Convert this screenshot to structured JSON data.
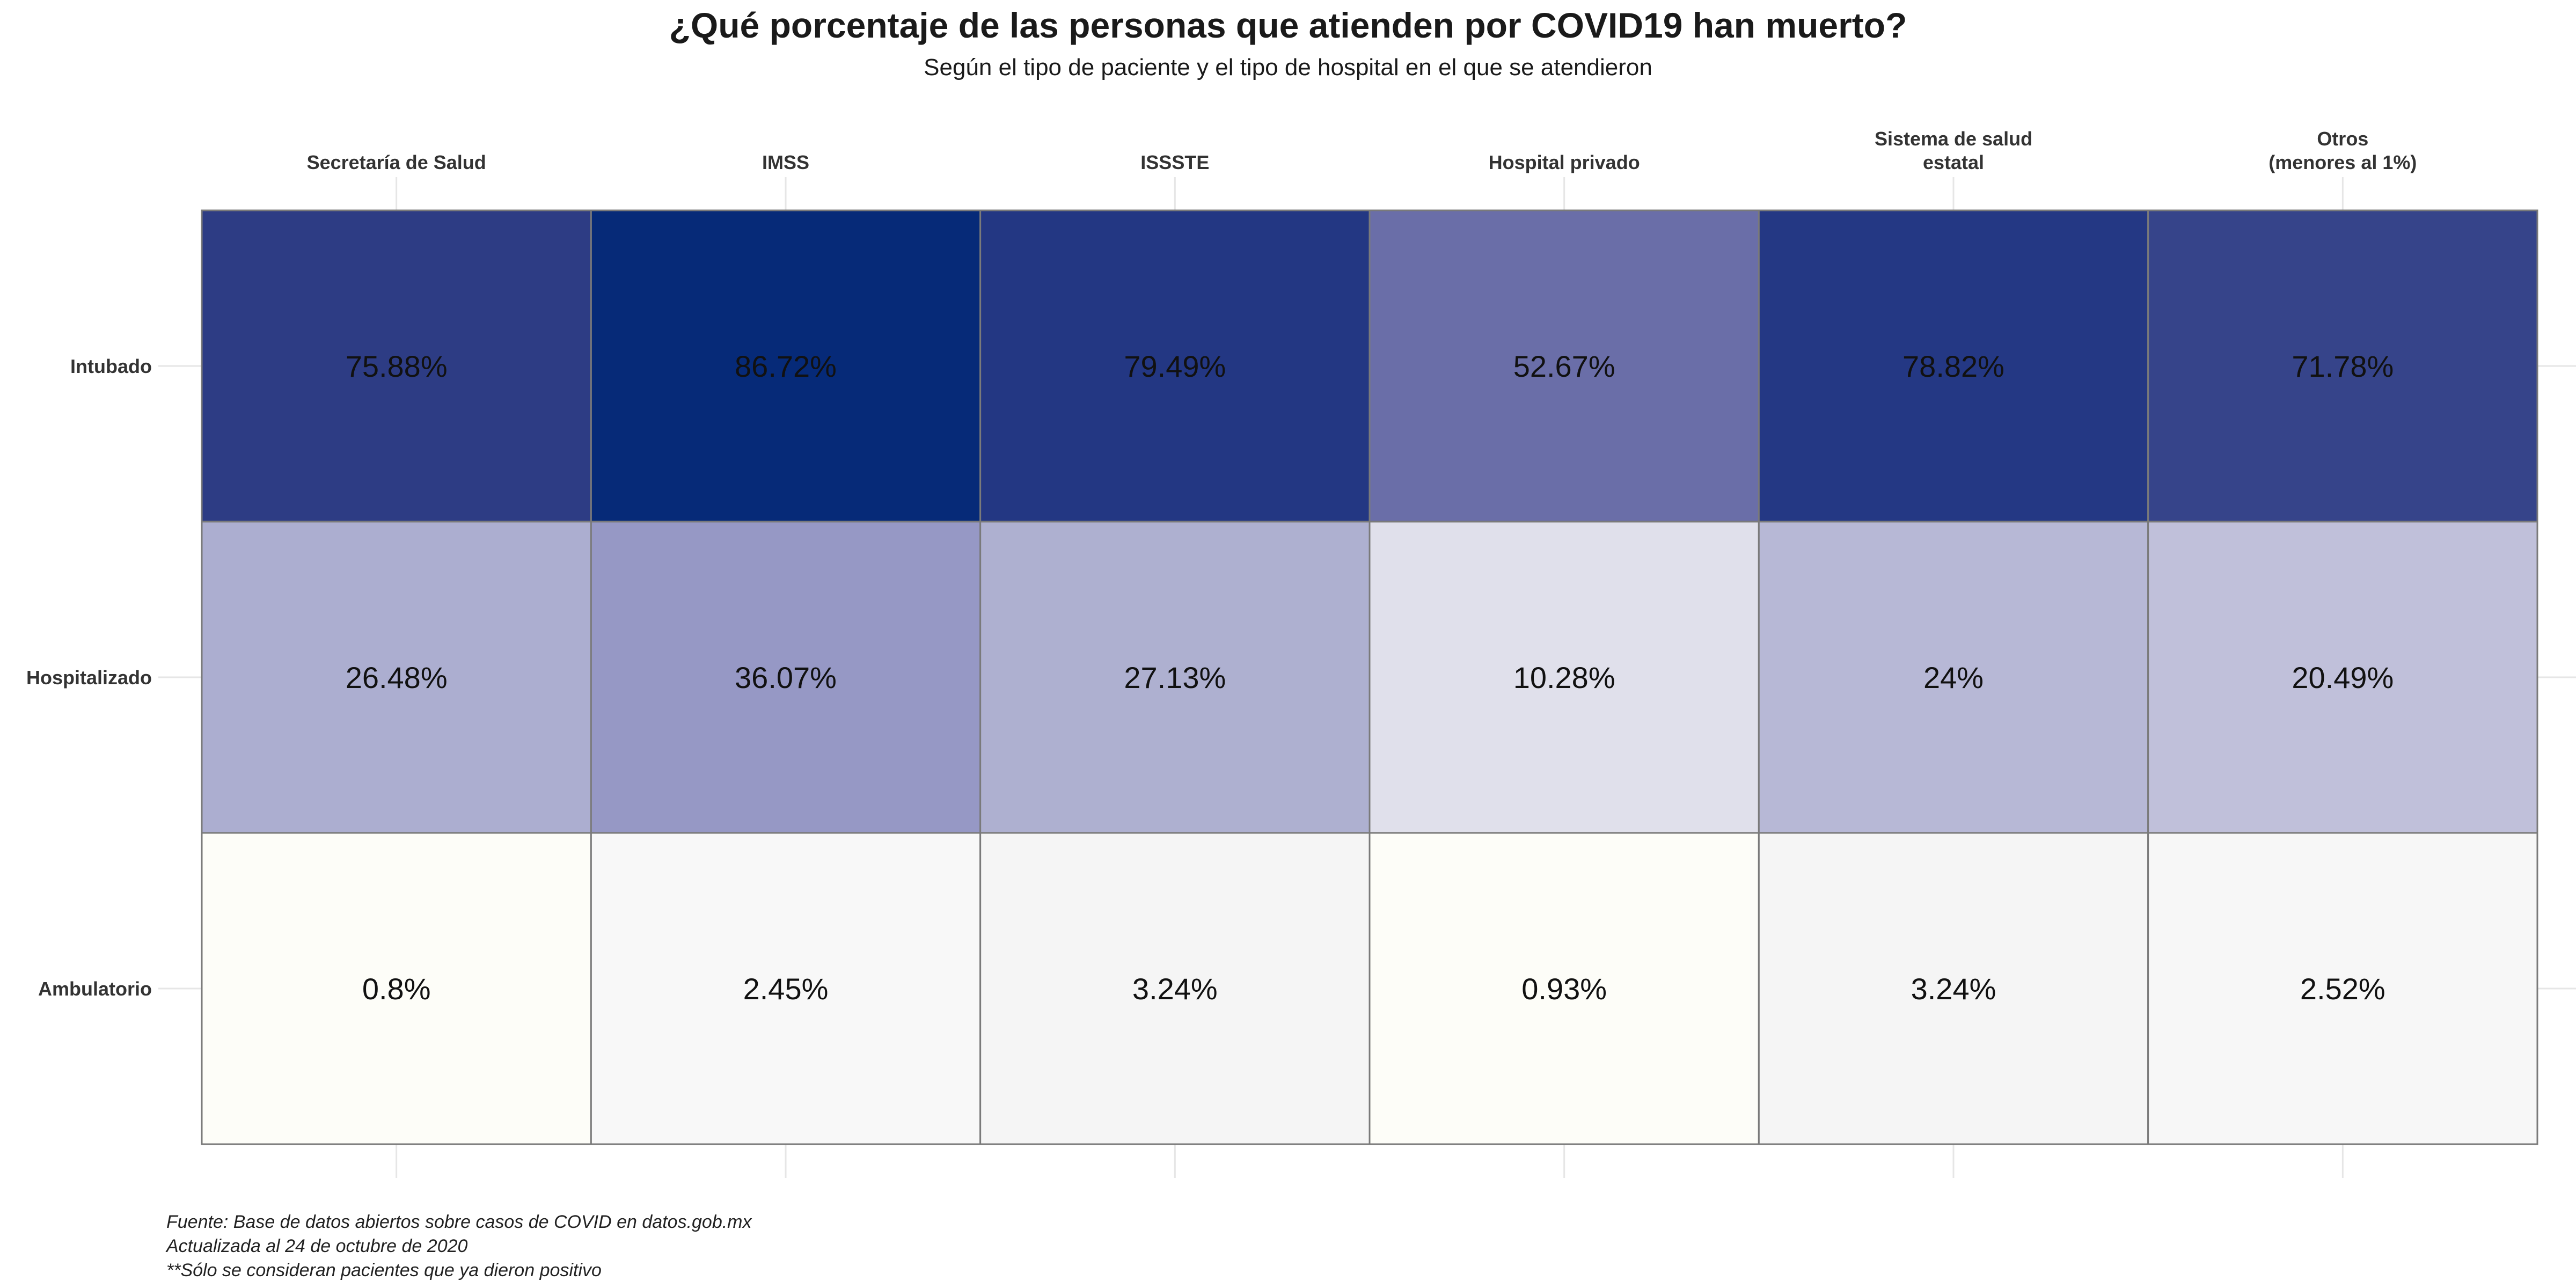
{
  "chart_data": {
    "type": "heatmap",
    "title": "¿Qué porcentaje de las personas que atienden por COVID19 han muerto?",
    "subtitle": "Según el tipo de paciente y el tipo de hospital en el que se atendieron",
    "columns": [
      [
        "Secretaría de Salud"
      ],
      [
        "IMSS"
      ],
      [
        "ISSSTE"
      ],
      [
        "Hospital privado"
      ],
      [
        "Sistema de salud",
        "estatal"
      ],
      [
        "Otros",
        "(menores al 1%)"
      ]
    ],
    "rows": [
      "Intubado",
      "Hospitalizado",
      "Ambulatorio"
    ],
    "values": [
      [
        75.88,
        86.72,
        79.49,
        52.67,
        78.82,
        71.78
      ],
      [
        26.48,
        36.07,
        27.13,
        10.28,
        24,
        20.49
      ],
      [
        0.8,
        2.45,
        3.24,
        0.93,
        3.24,
        2.52
      ]
    ],
    "labels": [
      [
        "75.88%",
        "86.72%",
        "79.49%",
        "52.67%",
        "78.82%",
        "71.78%"
      ],
      [
        "26.48%",
        "36.07%",
        "27.13%",
        "10.28%",
        "24%",
        "20.49%"
      ],
      [
        "0.8%",
        "2.45%",
        "3.24%",
        "0.93%",
        "3.24%",
        "2.52%"
      ]
    ],
    "fills": [
      [
        "#2d3c84",
        "#062a78",
        "#233783",
        "#6a6ea8",
        "#243884",
        "#36448a"
      ],
      [
        "#acaed0",
        "#9698c5",
        "#aeb0d0",
        "#e0e0eb",
        "#b7b8d6",
        "#c0c0da"
      ],
      [
        "#fdfdf8",
        "#f8f8f8",
        "#f5f5f5",
        "#fdfdf8",
        "#f5f5f5",
        "#f7f7f7"
      ]
    ],
    "grid": true,
    "legend": "none",
    "caption": [
      "Fuente: Base de datos abiertos sobre casos de COVID en datos.gob.mx",
      "Actualizada al 24 de octubre de 2020",
      "**Sólo se consideran pacientes que ya dieron positivo"
    ]
  }
}
